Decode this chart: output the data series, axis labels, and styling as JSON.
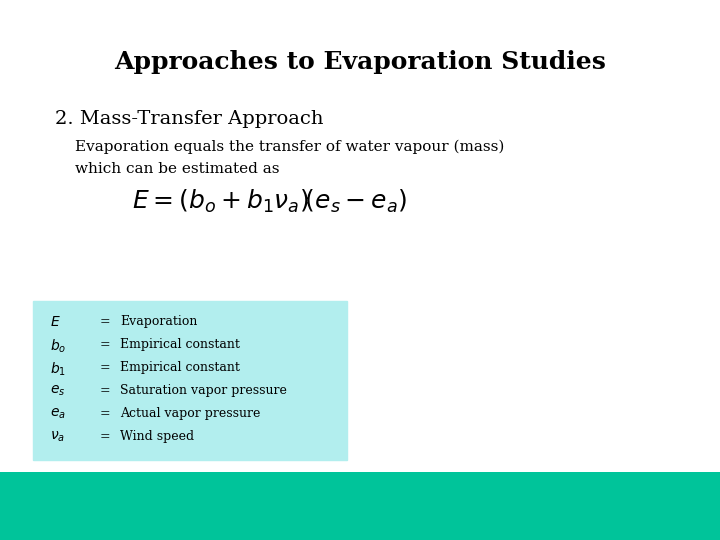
{
  "title": "Approaches to Evaporation Studies",
  "subtitle": "2. Mass-Transfer Approach",
  "body_text_1": "Evaporation equals the transfer of water vapour (mass)",
  "body_text_2": "which can be estimated as",
  "table_descriptions": [
    "Evaporation",
    "Empirical constant",
    "Empirical constant",
    "Saturation vapor pressure",
    "Actual vapor pressure",
    "Wind speed"
  ],
  "bg_color": "#ffffff",
  "table_bg_color": "#b2eeee",
  "bottom_bar_color": "#00c49a",
  "title_fontsize": 18,
  "subtitle_fontsize": 14,
  "body_fontsize": 11,
  "formula_fontsize": 18,
  "table_fontsize": 9
}
